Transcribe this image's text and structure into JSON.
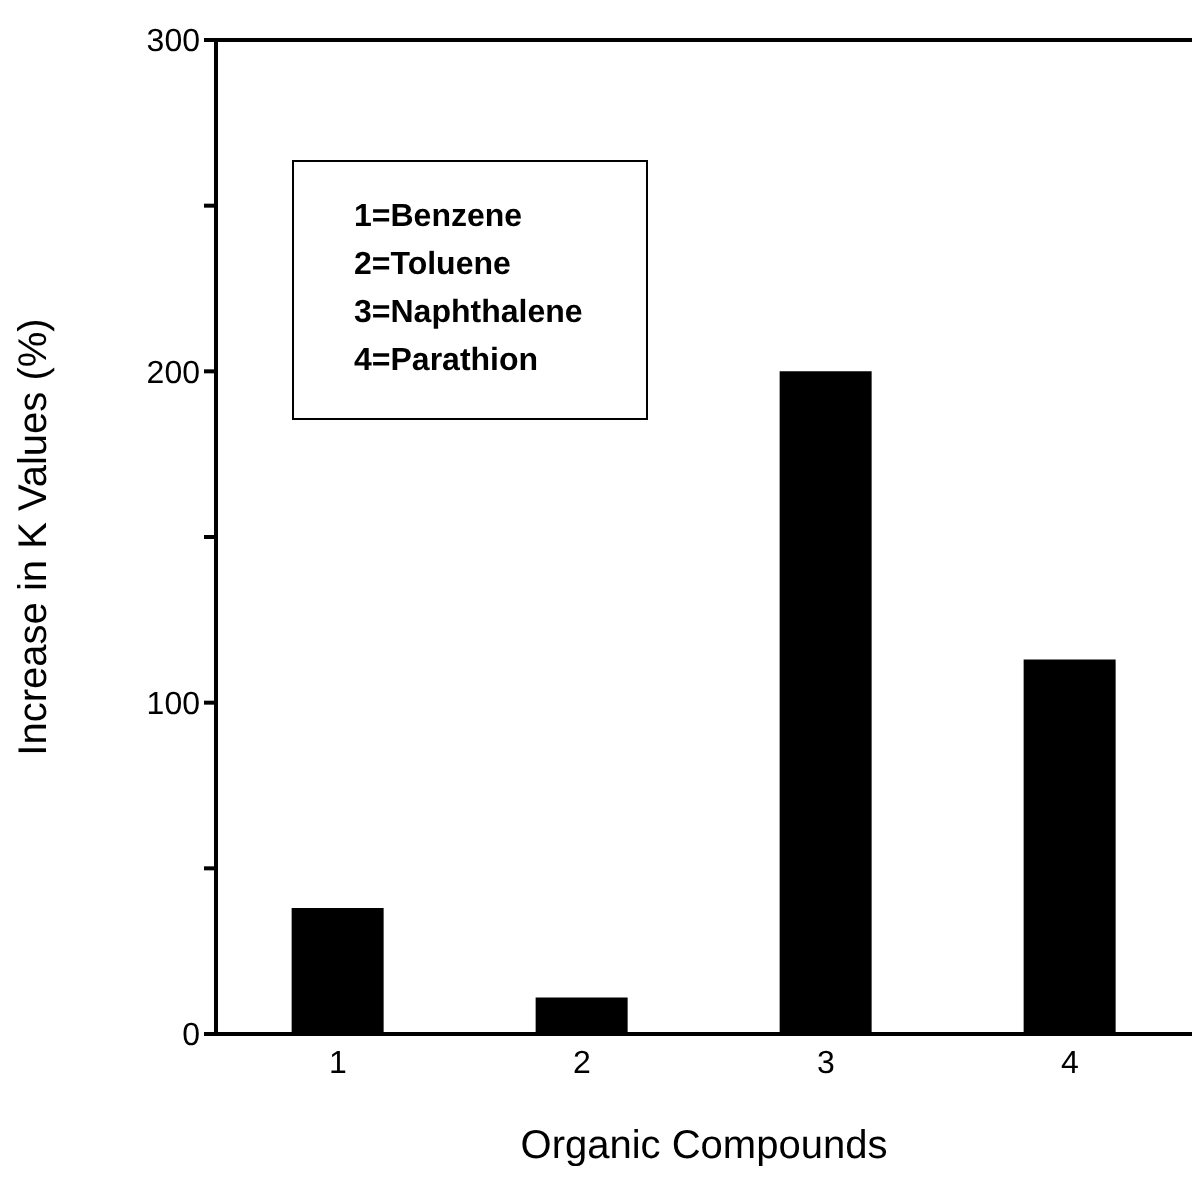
{
  "chart_data": {
    "type": "bar",
    "xlabel": "Organic Compounds",
    "ylabel": "Increase in  K  Values (%)",
    "categories": [
      "1",
      "2",
      "3",
      "4"
    ],
    "values": [
      38,
      11,
      200,
      113
    ],
    "color": "#000000",
    "ylim": [
      0,
      300
    ],
    "yticks": [
      0,
      {
        "value": 50,
        "label": null
      },
      100,
      {
        "value": 150,
        "label": null
      },
      200,
      {
        "value": 250,
        "label": null
      },
      300
    ],
    "annotations": [
      "1=Benzene",
      "2=Toluene",
      "3=Naphthalene",
      "4=Parathion"
    ]
  }
}
